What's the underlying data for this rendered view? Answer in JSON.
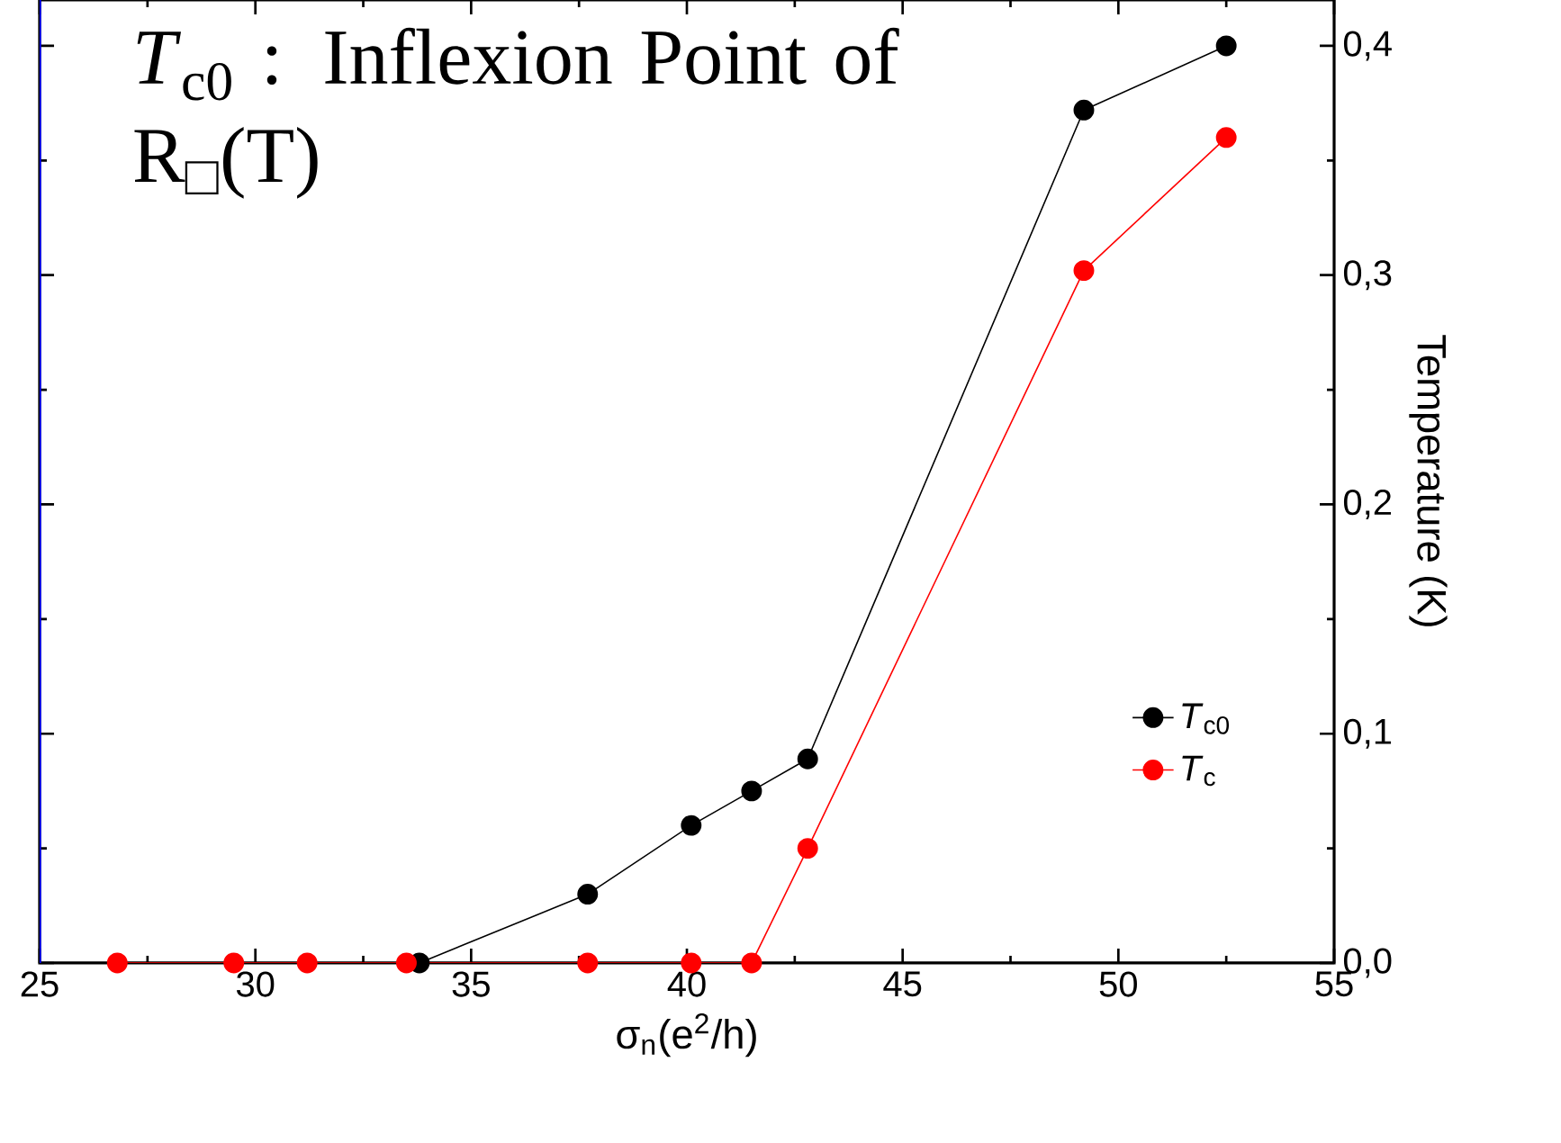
{
  "chart_data": {
    "type": "line",
    "xlabel": "σ$_{n}$(e$^{2}$/h)",
    "ylabel": "Temperature (K)",
    "annotations": [
      "*T*$_{c0}$ : Inflexion Point of R$_{□}$(T)"
    ],
    "xlim": [
      25,
      55
    ],
    "xticks": [
      25,
      30,
      35,
      40,
      45,
      50,
      55
    ],
    "ylim": [
      0,
      0.42
    ],
    "yticks": [
      {
        "value": 0,
        "label": "0,0"
      },
      {
        "value": 0.1,
        "label": "0,1"
      },
      {
        "value": 0.2,
        "label": "0,2"
      },
      {
        "value": 0.3,
        "label": "0,3"
      },
      {
        "value": 0.4,
        "label": "0,4"
      }
    ],
    "tick_labels": "xy",
    "legend": "bottom right",
    "marker": "circle",
    "line_style": "solid",
    "grid": false,
    "series": [
      {
        "name": "*T*$_{c0}$",
        "color": "#000000",
        "x": [
          33.8,
          37.7,
          40.1,
          41.5,
          42.8,
          49.2,
          52.5
        ],
        "values": [
          0,
          0.03,
          0.06,
          0.075,
          0.089,
          0.372,
          0.4
        ]
      },
      {
        "name": "*T*$_{c}$",
        "color": "#ff0000",
        "x": [
          26.8,
          29.5,
          31.2,
          33.5,
          37.7,
          40.1,
          41.5,
          42.8,
          49.2,
          52.5
        ],
        "values": [
          0,
          0,
          0,
          0,
          0,
          0,
          0,
          0.05,
          0.302,
          0.36
        ]
      }
    ]
  }
}
